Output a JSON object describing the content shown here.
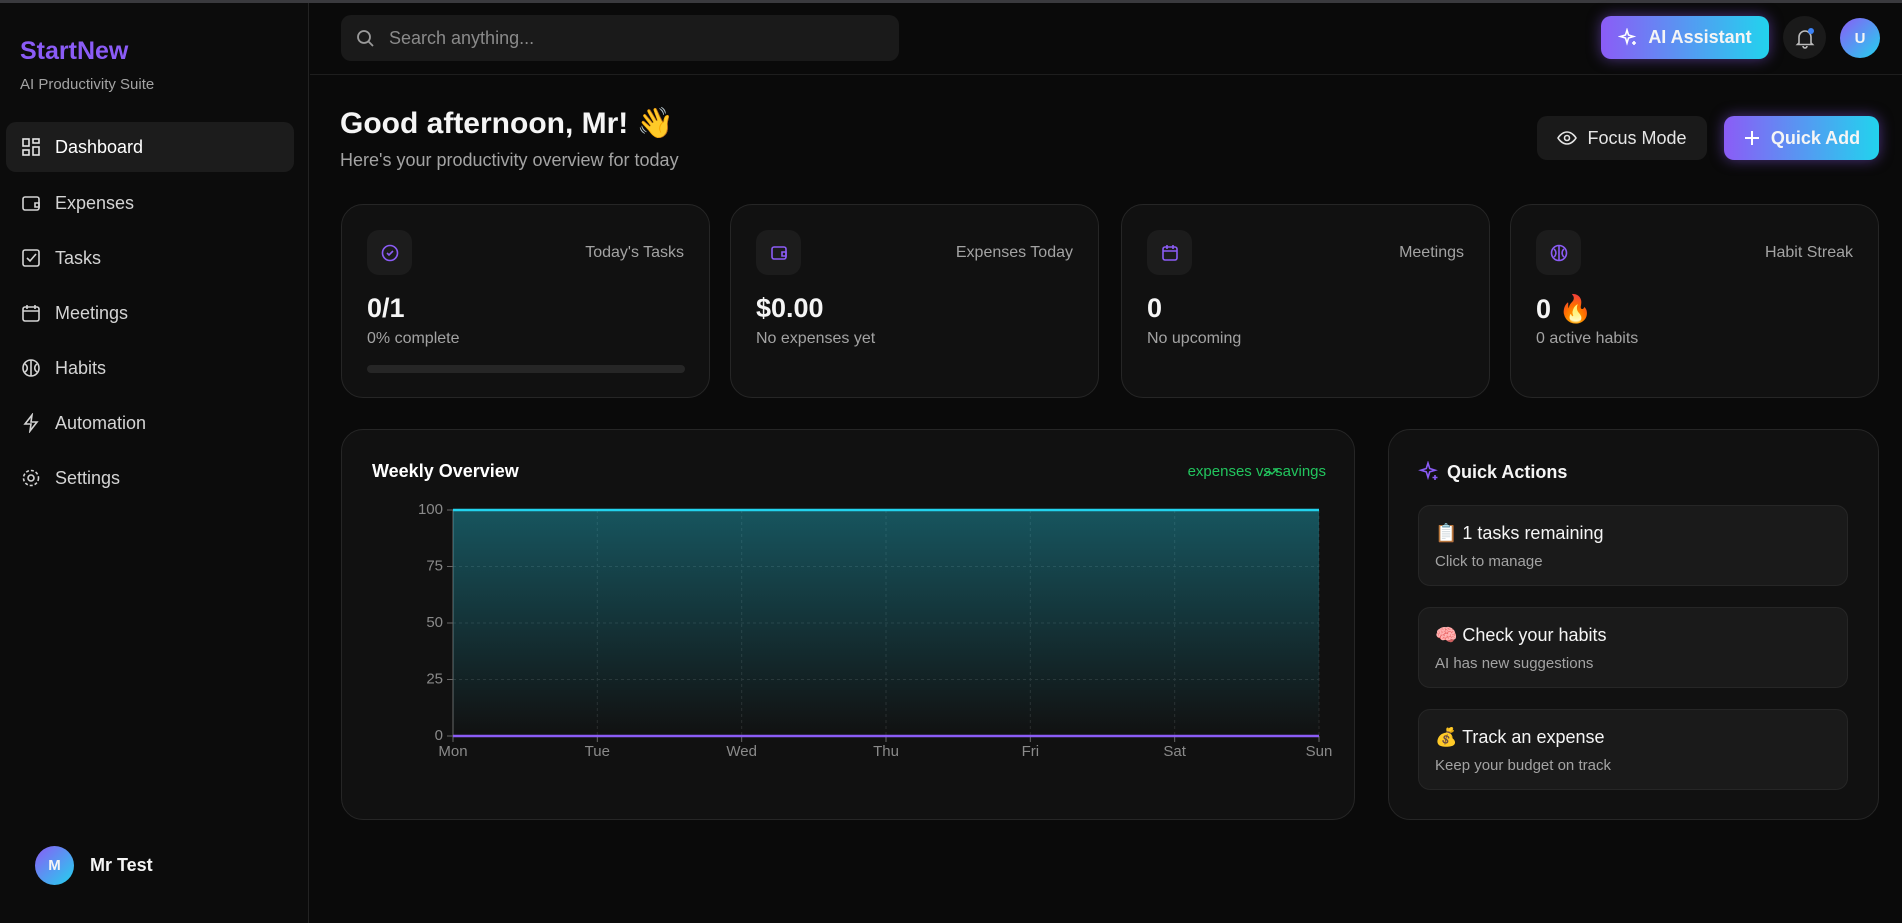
{
  "sidebar": {
    "brand": "StartNew",
    "tagline": "AI Productivity Suite",
    "nav": [
      "Dashboard",
      "Expenses",
      "Tasks",
      "Meetings",
      "Habits",
      "Automation",
      "Settings"
    ],
    "user": {
      "initial": "M",
      "name": "Mr Test"
    }
  },
  "topbar": {
    "search_placeholder": "Search anything...",
    "assistant_button": "AI Assistant",
    "avatar_initial": "U"
  },
  "header": {
    "greeting": "Good afternoon, Mr! 👋",
    "subtitle": "Here's your productivity overview for today",
    "focus_button": "Focus Mode",
    "quick_add_button": "Quick Add"
  },
  "stats": [
    {
      "label": "Today's Tasks",
      "value": "0/1",
      "note": "0% complete"
    },
    {
      "label": "Expenses Today",
      "value": "$0.00",
      "note": "No expenses yet"
    },
    {
      "label": "Meetings",
      "value": "0",
      "note": "No upcoming"
    },
    {
      "label": "Habit Streak",
      "value": "0 🔥",
      "note": "0 active habits"
    }
  ],
  "chart_data": {
    "type": "area",
    "title": "Weekly Overview",
    "annotation": "expenses vs savings",
    "categories": [
      "Mon",
      "Tue",
      "Wed",
      "Thu",
      "Fri",
      "Sat",
      "Sun"
    ],
    "series": [
      {
        "color": "#22d3ee",
        "area": true,
        "values": [
          100,
          100,
          100,
          100,
          100,
          100,
          100
        ]
      },
      {
        "color": "#8b5cf6",
        "area": false,
        "values": [
          0,
          0,
          0,
          0,
          0,
          0,
          0
        ]
      }
    ],
    "ylim": [
      0,
      100
    ],
    "yticks": [
      0,
      25,
      50,
      75,
      100
    ],
    "grid": true
  },
  "quick_actions": {
    "title": "Quick Actions",
    "items": [
      {
        "title": "📋 1 tasks remaining",
        "subtitle": "Click to manage"
      },
      {
        "title": "🧠 Check your habits",
        "subtitle": "AI has new suggestions"
      },
      {
        "title": "💰 Track an expense",
        "subtitle": "Keep your budget on track"
      }
    ]
  }
}
